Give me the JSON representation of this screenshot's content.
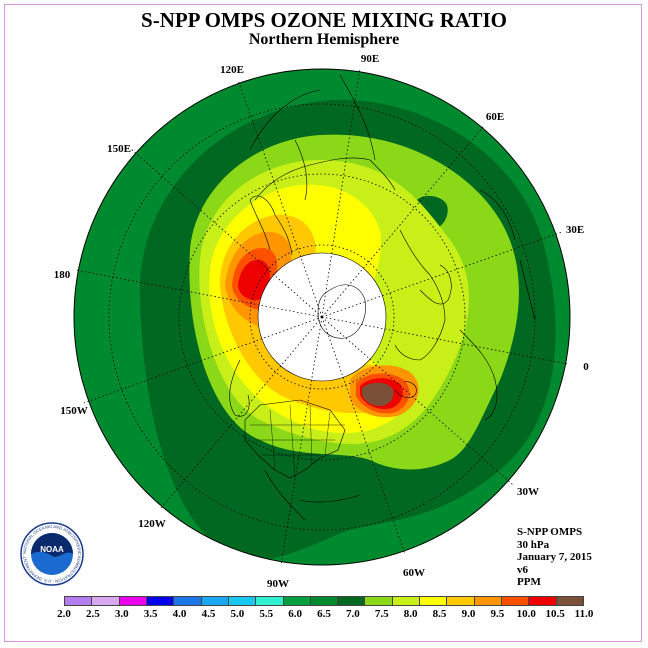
{
  "title": "S-NPP OMPS OZONE MIXING RATIO",
  "subtitle": "Northern Hemisphere",
  "longitude_labels": [
    "90E",
    "60E",
    "30E",
    "0",
    "30W",
    "60W",
    "90W",
    "120W",
    "150W",
    "180",
    "150E",
    "120E"
  ],
  "info": {
    "instrument": "S-NPP OMPS",
    "level": "30 hPa",
    "date": "January 7, 2015",
    "version": "v6",
    "units": "PPM"
  },
  "logo_text": "NOAA",
  "logo_ring_text": "NATIONAL OCEANIC AND ATMOSPHERIC ADMINISTRATION · U.S. DEPARTMENT OF COMMERCE",
  "colorbar": {
    "ticks": [
      "2.0",
      "2.5",
      "3.0",
      "3.5",
      "4.0",
      "4.5",
      "5.0",
      "5.5",
      "6.0",
      "6.5",
      "7.0",
      "7.5",
      "8.0",
      "8.5",
      "9.0",
      "9.5",
      "10.0",
      "10.5",
      "11.0"
    ],
    "colors": [
      "#b57ef0",
      "#d8a8f0",
      "#ee00ee",
      "#0000ee",
      "#1a78e8",
      "#1aa8f0",
      "#18c8f0",
      "#30f0d0",
      "#00a040",
      "#008a30",
      "#006820",
      "#8ad818",
      "#c8f018",
      "#ffff00",
      "#ffc800",
      "#ff9600",
      "#ff5000",
      "#ee0000",
      "#7a5038"
    ]
  },
  "map_colors": {
    "c65": "#008a30",
    "c70": "#006820",
    "c75": "#8ad818",
    "c80": "#c8f018",
    "c85": "#ffff00",
    "c90": "#ffc800",
    "c95": "#ff9600",
    "c100": "#ff5000",
    "c105": "#ee0000",
    "c110": "#7a5038"
  }
}
